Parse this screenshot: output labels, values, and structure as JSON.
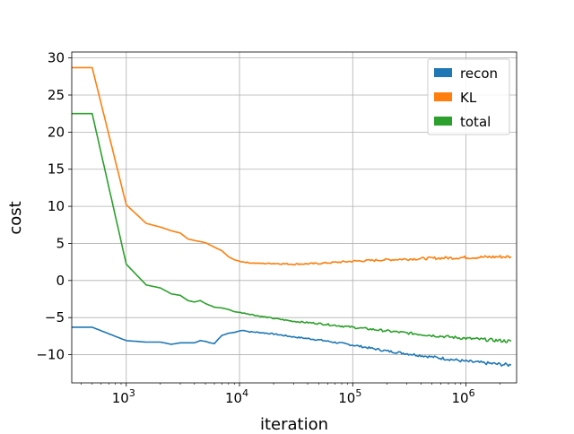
{
  "chart_data": {
    "type": "line",
    "title": "",
    "xlabel": "iteration",
    "ylabel": "cost",
    "xscale": "log",
    "xlim": [
      330,
      2800000
    ],
    "ylim": [
      -13.8,
      30.8
    ],
    "grid": true,
    "legend_position": "top-right",
    "x_ticks": [
      {
        "value": 1000,
        "base": "10",
        "exp": "3"
      },
      {
        "value": 10000,
        "base": "10",
        "exp": "4"
      },
      {
        "value": 100000,
        "base": "10",
        "exp": "5"
      },
      {
        "value": 1000000,
        "base": "10",
        "exp": "6"
      }
    ],
    "y_ticks": [
      {
        "value": -10,
        "label": "−10"
      },
      {
        "value": -5,
        "label": "−5"
      },
      {
        "value": 0,
        "label": "0"
      },
      {
        "value": 5,
        "label": "5"
      },
      {
        "value": 10,
        "label": "10"
      },
      {
        "value": 15,
        "label": "15"
      },
      {
        "value": 20,
        "label": "20"
      },
      {
        "value": 25,
        "label": "25"
      },
      {
        "value": 30,
        "label": "30"
      }
    ],
    "series": [
      {
        "name": "recon",
        "color": "#1f77b4",
        "x": [
          330,
          500,
          1000,
          1500,
          2000,
          2500,
          3000,
          4000,
          4500,
          5000,
          5500,
          6000,
          6500,
          7000,
          8000,
          9000,
          10000,
          11000,
          12000,
          15000,
          20000,
          30000,
          50000,
          100000,
          200000,
          500000,
          1000000,
          2000000,
          2500000
        ],
        "y": [
          -6.3,
          -6.3,
          -8.1,
          -8.3,
          -8.3,
          -8.6,
          -8.4,
          -8.4,
          -8.1,
          -8.2,
          -8.4,
          -8.5,
          -7.9,
          -7.4,
          -7.1,
          -7.0,
          -6.8,
          -6.7,
          -6.9,
          -7.0,
          -7.2,
          -7.6,
          -8.0,
          -8.7,
          -9.5,
          -10.3,
          -10.9,
          -11.3,
          -11.4
        ]
      },
      {
        "name": "KL",
        "color": "#ff7f0e",
        "x": [
          330,
          500,
          1000,
          1500,
          2000,
          2500,
          3000,
          3500,
          4000,
          5000,
          6000,
          7000,
          8000,
          9000,
          10000,
          12000,
          15000,
          20000,
          30000,
          50000,
          100000,
          200000,
          500000,
          1000000,
          2000000,
          2500000
        ],
        "y": [
          28.7,
          28.7,
          10.2,
          7.7,
          7.2,
          6.7,
          6.4,
          5.6,
          5.4,
          5.1,
          4.5,
          4.0,
          3.2,
          2.8,
          2.6,
          2.4,
          2.3,
          2.3,
          2.2,
          2.3,
          2.6,
          2.8,
          3.0,
          3.1,
          3.2,
          3.2
        ]
      },
      {
        "name": "total",
        "color": "#2ca02c",
        "x": [
          330,
          500,
          1000,
          1500,
          2000,
          2500,
          3000,
          3500,
          4000,
          4500,
          5000,
          6000,
          7000,
          8000,
          9000,
          10000,
          12000,
          15000,
          20000,
          30000,
          50000,
          100000,
          200000,
          500000,
          1000000,
          2000000,
          2500000
        ],
        "y": [
          22.5,
          22.5,
          2.2,
          -0.6,
          -1.0,
          -1.8,
          -2.0,
          -2.7,
          -2.9,
          -2.7,
          -3.1,
          -3.6,
          -3.7,
          -3.9,
          -4.2,
          -4.3,
          -4.5,
          -4.8,
          -5.1,
          -5.5,
          -5.8,
          -6.3,
          -6.8,
          -7.4,
          -7.8,
          -8.1,
          -8.2
        ]
      }
    ]
  }
}
